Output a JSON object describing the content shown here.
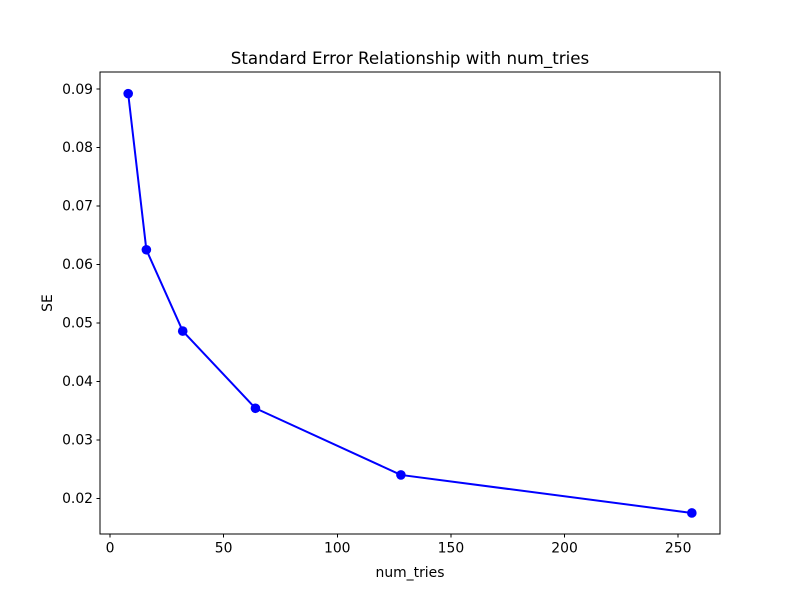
{
  "figure": {
    "background_color": "#ffffff",
    "text_color": "#000000"
  },
  "chart_data": {
    "type": "line",
    "title": "Standard Error Relationship with num_tries",
    "xlabel": "num_tries",
    "ylabel": "SE",
    "series": [
      {
        "x": [
          8,
          16,
          32,
          64,
          128,
          256
        ],
        "y": [
          0.0892,
          0.0625,
          0.0486,
          0.0354,
          0.024,
          0.0175
        ],
        "color": "#0000ff",
        "marker": "o",
        "linestyle": "solid"
      }
    ],
    "xlim": [
      -4.4,
      268.4
    ],
    "ylim": [
      0.0139,
      0.0929
    ],
    "x_ticks": {
      "values": [
        0,
        50,
        100,
        150,
        200,
        250
      ],
      "labels": [
        "0",
        "50",
        "100",
        "150",
        "200",
        "250"
      ]
    },
    "y_ticks": {
      "values": [
        0.02,
        0.03,
        0.04,
        0.05,
        0.06,
        0.07,
        0.08,
        0.09
      ],
      "labels": [
        "0.02",
        "0.03",
        "0.04",
        "0.05",
        "0.06",
        "0.07",
        "0.08",
        "0.09"
      ]
    },
    "grid": false,
    "legend": false,
    "spine_color": "#000000"
  }
}
